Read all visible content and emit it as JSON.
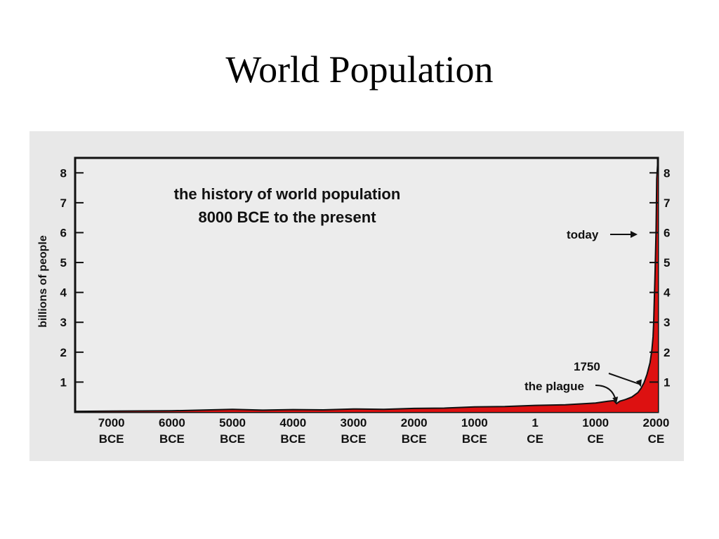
{
  "slide": {
    "title": "World Population"
  },
  "chart_data": {
    "type": "area",
    "title_lines": [
      "the history of world population",
      "8000 BCE to the present"
    ],
    "ylabel": "billions of people",
    "ylim": [
      0,
      8.5
    ],
    "xlim": [
      -7600,
      2030
    ],
    "yticks": [
      1,
      2,
      3,
      4,
      5,
      6,
      7,
      8
    ],
    "xticks": [
      {
        "value": -7000,
        "line1": "7000",
        "line2": "BCE"
      },
      {
        "value": -6000,
        "line1": "6000",
        "line2": "BCE"
      },
      {
        "value": -5000,
        "line1": "5000",
        "line2": "BCE"
      },
      {
        "value": -4000,
        "line1": "4000",
        "line2": "BCE"
      },
      {
        "value": -3000,
        "line1": "3000",
        "line2": "BCE"
      },
      {
        "value": -2000,
        "line1": "2000",
        "line2": "BCE"
      },
      {
        "value": -1000,
        "line1": "1000",
        "line2": "BCE"
      },
      {
        "value": 1,
        "line1": "1",
        "line2": "CE"
      },
      {
        "value": 1000,
        "line1": "1000",
        "line2": "CE"
      },
      {
        "value": 2000,
        "line1": "2000",
        "line2": "CE"
      }
    ],
    "series": [
      {
        "x": [
          -7600,
          -7000,
          -6000,
          -5000,
          -4500,
          -4000,
          -3500,
          -3000,
          -2500,
          -2000,
          -1500,
          -1000,
          -500,
          1,
          500,
          1000,
          1200,
          1300,
          1347,
          1400,
          1500,
          1600,
          1700,
          1750,
          1800,
          1850,
          1900,
          1930,
          1950,
          1960,
          1970,
          1980,
          1990,
          1995,
          2000,
          2010,
          2030
        ],
        "y": [
          0.02,
          0.03,
          0.04,
          0.09,
          0.06,
          0.08,
          0.07,
          0.1,
          0.09,
          0.12,
          0.13,
          0.17,
          0.18,
          0.22,
          0.24,
          0.3,
          0.36,
          0.38,
          0.28,
          0.36,
          0.42,
          0.5,
          0.65,
          0.79,
          0.98,
          1.26,
          1.65,
          2.07,
          2.52,
          3.02,
          3.7,
          4.44,
          5.3,
          5.7,
          6.1,
          7.8,
          8.5
        ],
        "color": "#dd1111"
      }
    ],
    "annotations": [
      {
        "text": "today",
        "x": 1995,
        "y": 6.0
      },
      {
        "text": "1750",
        "x": 1750,
        "y": 0.79
      },
      {
        "text": "the plague",
        "x": 1347,
        "y": 0.28
      }
    ]
  }
}
